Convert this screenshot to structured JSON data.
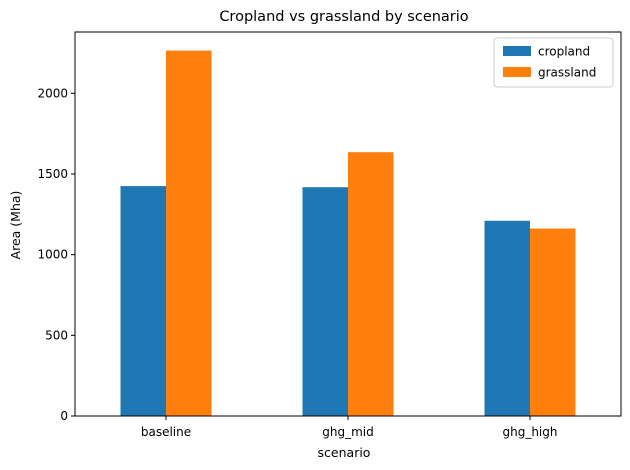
{
  "chart_data": {
    "type": "bar",
    "title": "Cropland vs grassland by scenario",
    "xlabel": "scenario",
    "ylabel": "Area (Mha)",
    "categories": [
      "baseline",
      "ghg_mid",
      "ghg_high"
    ],
    "series": [
      {
        "name": "cropland",
        "color": "#1f77b4",
        "values": [
          1425,
          1418,
          1210
        ]
      },
      {
        "name": "grassland",
        "color": "#ff7f0e",
        "values": [
          2265,
          1635,
          1162
        ]
      }
    ],
    "ylim": [
      0,
      2380
    ],
    "yticks": [
      0,
      500,
      1000,
      1500,
      2000
    ],
    "grid": false,
    "legend": "top-right"
  }
}
